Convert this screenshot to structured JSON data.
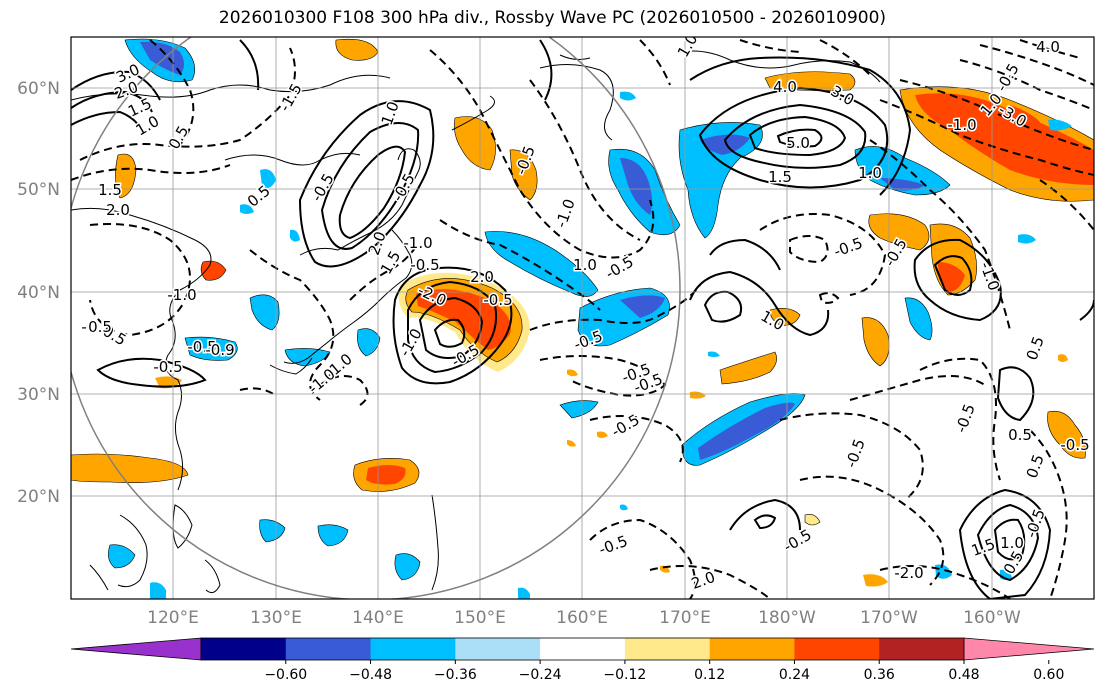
{
  "title": "2026010300 F108 300 hPa div., Rossby Wave PC (2026010500 - 2026010900)",
  "lat_labels": [
    "60°N",
    "50°N",
    "40°N",
    "30°N",
    "20°N"
  ],
  "lon_labels": [
    "120°E",
    "130°E",
    "140°E",
    "150°E",
    "160°E",
    "170°E",
    "180°W",
    "170°W",
    "160°W"
  ],
  "colorbar": {
    "colors": [
      "#9932cc",
      "#00008b",
      "#3a5bd6",
      "#00bfff",
      "#abdff8",
      "#ffffff",
      "#ffe98a",
      "#ffa500",
      "#ff4500",
      "#b22222",
      "#ff88aa"
    ],
    "tick_labels": [
      "−0.60",
      "−0.48",
      "−0.36",
      "−0.24",
      "−0.12",
      "0.12",
      "0.24",
      "0.36",
      "0.48",
      "0.60"
    ]
  },
  "contour_labels": [
    "3.0",
    "2.0",
    "1.5",
    "1.0",
    "0.5",
    "1.5",
    "2.0",
    "-1.5",
    "1.0",
    "-0.5",
    "0.5",
    "-0.5",
    "2.0",
    "1.5",
    "-1.0",
    "-0.5",
    "-1.0",
    "-0.5",
    "-0.5",
    "-2.0",
    "2.0",
    "-0.5",
    "0.5",
    "-0.9",
    "-0.5",
    "-1.0",
    "-1.0",
    "-1.0",
    "-0.5",
    "1.0",
    "-0.5",
    "-0.5",
    "-0.5",
    "1.0",
    "4.0",
    "3.0",
    "5.0",
    "1.5",
    "1.0",
    "-0.5",
    "-1.0",
    "-0.5",
    "-0.5",
    "1.0",
    "-0.5",
    "-0.5",
    "-1.0",
    "0.5",
    "-0.5",
    "-0.5",
    "0.5",
    "0.5",
    "-0.5",
    "-0.5",
    "2.0",
    "1.5",
    "1.0",
    "0.5",
    "-0.5",
    "-2.0",
    "-1.0",
    "-3.0",
    "4.0",
    "-0.5",
    "0.5",
    "-0.5",
    "1.0"
  ]
}
